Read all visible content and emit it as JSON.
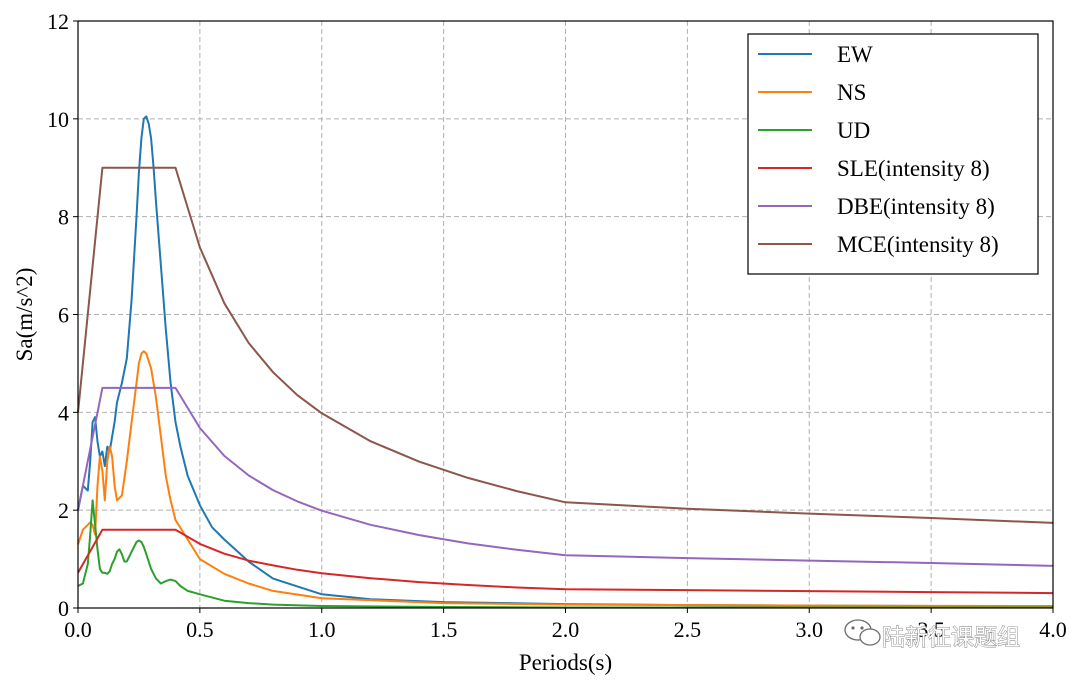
{
  "chart_data": {
    "type": "line",
    "xlabel": "Periods(s)",
    "ylabel": "Sa(m/s^2)",
    "xlim": [
      0,
      4.0
    ],
    "ylim": [
      0,
      12
    ],
    "xticks": [
      0.0,
      0.5,
      1.0,
      1.5,
      2.0,
      2.5,
      3.0,
      3.5,
      4.0
    ],
    "xtick_labels": [
      "0.0",
      "0.5",
      "1.0",
      "1.5",
      "2.0",
      "2.5",
      "3.0",
      "3.5",
      "4.0"
    ],
    "yticks": [
      0,
      2,
      4,
      6,
      8,
      10,
      12
    ],
    "ytick_labels": [
      "0",
      "2",
      "4",
      "6",
      "8",
      "10",
      "12"
    ],
    "grid": true,
    "legend_position": "top-right",
    "series": [
      {
        "name": "EW",
        "color": "#1f77b4",
        "x": [
          0,
          0.02,
          0.04,
          0.05,
          0.06,
          0.07,
          0.08,
          0.09,
          0.1,
          0.11,
          0.12,
          0.13,
          0.14,
          0.15,
          0.16,
          0.18,
          0.2,
          0.22,
          0.24,
          0.25,
          0.26,
          0.27,
          0.28,
          0.29,
          0.3,
          0.31,
          0.32,
          0.34,
          0.36,
          0.38,
          0.4,
          0.42,
          0.45,
          0.5,
          0.55,
          0.6,
          0.7,
          0.8,
          1.0,
          1.2,
          1.5,
          2.0,
          2.5,
          3.0,
          3.5,
          4.0
        ],
        "y": [
          2.0,
          2.5,
          2.4,
          3.0,
          3.8,
          3.9,
          3.4,
          3.1,
          3.2,
          2.9,
          3.3,
          3.2,
          3.5,
          3.8,
          4.2,
          4.6,
          5.1,
          6.3,
          8.0,
          8.9,
          9.6,
          10.0,
          10.05,
          9.9,
          9.6,
          9.0,
          8.3,
          7.0,
          5.7,
          4.6,
          3.8,
          3.3,
          2.7,
          2.1,
          1.65,
          1.4,
          0.95,
          0.6,
          0.28,
          0.18,
          0.12,
          0.08,
          0.06,
          0.05,
          0.04,
          0.03
        ]
      },
      {
        "name": "NS",
        "color": "#ff7f0e",
        "x": [
          0,
          0.02,
          0.04,
          0.05,
          0.06,
          0.07,
          0.08,
          0.09,
          0.1,
          0.11,
          0.12,
          0.13,
          0.14,
          0.15,
          0.16,
          0.18,
          0.2,
          0.22,
          0.24,
          0.25,
          0.26,
          0.27,
          0.28,
          0.3,
          0.32,
          0.34,
          0.36,
          0.38,
          0.4,
          0.45,
          0.5,
          0.6,
          0.7,
          0.8,
          1.0,
          1.5,
          2.0,
          3.0,
          4.0
        ],
        "y": [
          1.3,
          1.6,
          1.7,
          1.75,
          1.7,
          1.5,
          2.5,
          3.1,
          2.8,
          2.2,
          3.0,
          3.3,
          3.1,
          2.5,
          2.2,
          2.3,
          3.0,
          3.8,
          4.6,
          5.0,
          5.2,
          5.25,
          5.2,
          4.9,
          4.3,
          3.5,
          2.7,
          2.2,
          1.8,
          1.4,
          1.0,
          0.7,
          0.5,
          0.35,
          0.2,
          0.1,
          0.07,
          0.05,
          0.04
        ]
      },
      {
        "name": "UD",
        "color": "#2ca02c",
        "x": [
          0,
          0.02,
          0.04,
          0.05,
          0.06,
          0.07,
          0.08,
          0.09,
          0.1,
          0.11,
          0.12,
          0.13,
          0.14,
          0.15,
          0.16,
          0.17,
          0.18,
          0.19,
          0.2,
          0.22,
          0.24,
          0.25,
          0.26,
          0.27,
          0.28,
          0.3,
          0.32,
          0.34,
          0.36,
          0.38,
          0.4,
          0.42,
          0.45,
          0.5,
          0.6,
          0.7,
          0.8,
          1.0,
          1.5,
          2.0,
          3.0,
          4.0
        ],
        "y": [
          0.45,
          0.5,
          0.9,
          1.5,
          2.2,
          1.7,
          1.2,
          0.8,
          0.72,
          0.72,
          0.7,
          0.75,
          0.9,
          1.0,
          1.15,
          1.2,
          1.1,
          0.95,
          0.95,
          1.15,
          1.35,
          1.38,
          1.35,
          1.25,
          1.1,
          0.8,
          0.6,
          0.5,
          0.55,
          0.58,
          0.55,
          0.45,
          0.35,
          0.28,
          0.15,
          0.1,
          0.07,
          0.04,
          0.02,
          0.01,
          0.01,
          0.01
        ]
      },
      {
        "name": "SLE(intensity 8)",
        "color": "#d62728",
        "x": [
          0,
          0.1,
          0.4,
          0.5,
          0.6,
          0.7,
          0.8,
          0.9,
          1.0,
          1.2,
          1.4,
          1.6,
          1.8,
          2.0,
          2.5,
          3.0,
          3.5,
          4.0
        ],
        "y": [
          0.72,
          1.6,
          1.6,
          1.31,
          1.11,
          0.97,
          0.87,
          0.78,
          0.71,
          0.61,
          0.53,
          0.47,
          0.42,
          0.385,
          0.365,
          0.345,
          0.325,
          0.305
        ]
      },
      {
        "name": "DBE(intensity 8)",
        "color": "#9467bd",
        "x": [
          0,
          0.1,
          0.4,
          0.5,
          0.6,
          0.7,
          0.8,
          0.9,
          1.0,
          1.2,
          1.4,
          1.6,
          1.8,
          2.0,
          2.5,
          3.0,
          3.5,
          4.0
        ],
        "y": [
          2.0,
          4.5,
          4.5,
          3.68,
          3.11,
          2.71,
          2.41,
          2.18,
          1.99,
          1.7,
          1.49,
          1.32,
          1.19,
          1.08,
          1.02,
          0.97,
          0.92,
          0.86
        ]
      },
      {
        "name": "MCE(intensity 8)",
        "color": "#8c564b",
        "x": [
          0,
          0.1,
          0.4,
          0.5,
          0.6,
          0.7,
          0.8,
          0.9,
          1.0,
          1.2,
          1.4,
          1.6,
          1.8,
          2.0,
          2.5,
          3.0,
          3.5,
          4.0
        ],
        "y": [
          4.0,
          9.0,
          9.0,
          7.37,
          6.23,
          5.42,
          4.82,
          4.35,
          3.98,
          3.41,
          2.99,
          2.66,
          2.39,
          2.16,
          2.03,
          1.93,
          1.84,
          1.74
        ]
      }
    ]
  },
  "watermark": {
    "text": "陆新征课题组",
    "icon": "wechat-icon"
  }
}
